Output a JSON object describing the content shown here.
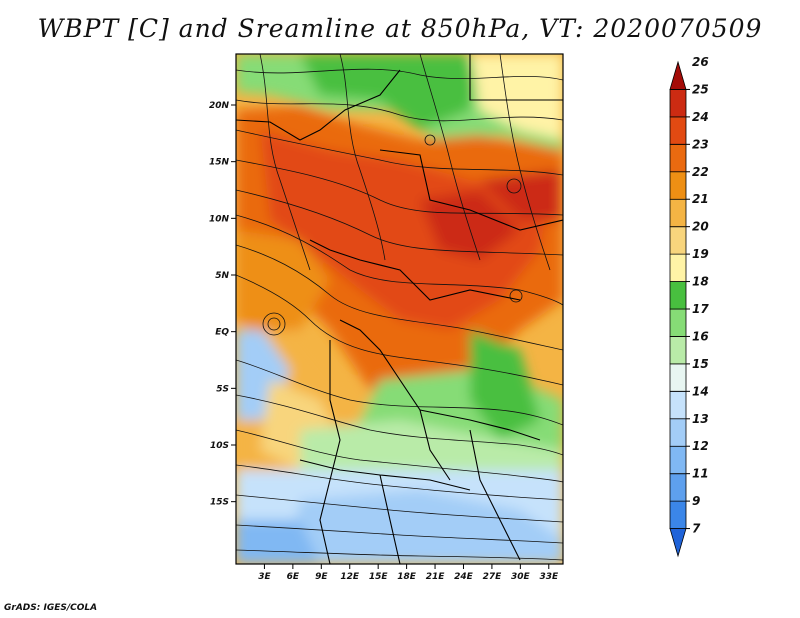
{
  "title": "WBPT [C] and Sreamline at 850hPa, VT: 2020070509",
  "credit": "GrADS: IGES/COLA",
  "map": {
    "variable": "Wet-bulb potential temperature (WBPT)",
    "units": "C",
    "level": "850hPa",
    "valid_time": "2020070509",
    "lat_ticks": [
      "20N",
      "15N",
      "10N",
      "5N",
      "EQ",
      "5S",
      "10S",
      "15S"
    ],
    "lat_values": [
      20,
      15,
      10,
      5,
      0,
      -5,
      -10,
      -15
    ],
    "lon_ticks": [
      "3E",
      "6E",
      "9E",
      "12E",
      "15E",
      "18E",
      "21E",
      "24E",
      "27E",
      "30E",
      "33E"
    ],
    "lon_values": [
      3,
      6,
      9,
      12,
      15,
      18,
      21,
      24,
      27,
      30,
      33
    ],
    "lon_range": [
      0,
      34.5
    ],
    "lat_range": [
      -20.5,
      24.5
    ]
  },
  "colorbar": {
    "labels": [
      "7",
      "9",
      "11",
      "12",
      "13",
      "14",
      "15",
      "16",
      "17",
      "18",
      "19",
      "20",
      "21",
      "22",
      "23",
      "24",
      "25",
      "26"
    ],
    "colors": [
      "#1f63d9",
      "#3b86e8",
      "#5ea0ee",
      "#80b8f3",
      "#a3cdf7",
      "#c6e2fb",
      "#e8f6f2",
      "#b9eba8",
      "#86dc76",
      "#48bf3f",
      "#fff3a6",
      "#f8d57d",
      "#f4b444",
      "#ee8f14",
      "#ea6a10",
      "#e24a12",
      "#cc2b12",
      "#a40c08"
    ]
  }
}
